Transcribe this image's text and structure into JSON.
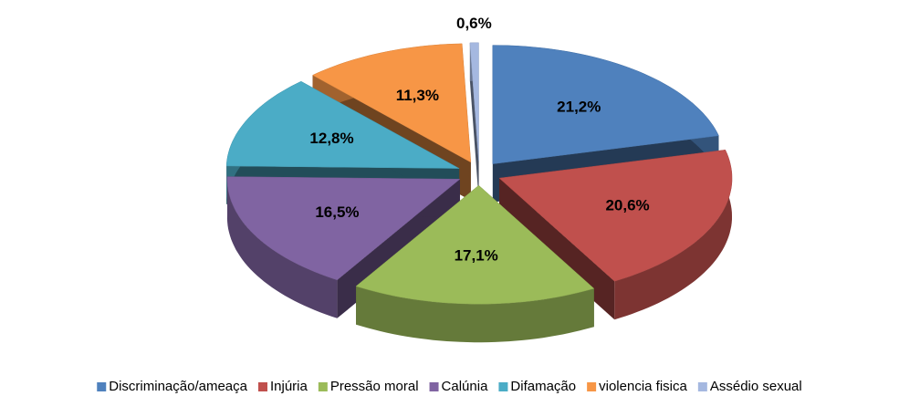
{
  "chart_data": {
    "type": "pie3d",
    "categories": [
      "Discriminação/ameaça",
      "Injúria",
      "Pressão moral",
      "Calúnia",
      "Difamação",
      "violencia fisica",
      "Assédio sexual"
    ],
    "values": [
      21.2,
      20.6,
      17.1,
      16.5,
      12.8,
      11.3,
      0.6
    ],
    "value_labels": [
      "21,2%",
      "20,6%",
      "17,1%",
      "16,5%",
      "12,8%",
      "11,3%",
      "0,6%"
    ],
    "colors": [
      "#4f81bd",
      "#c0504d",
      "#9bbb59",
      "#8064a2",
      "#4bacc6",
      "#f79646",
      "#a5b8e0"
    ],
    "legend": "bottom"
  }
}
